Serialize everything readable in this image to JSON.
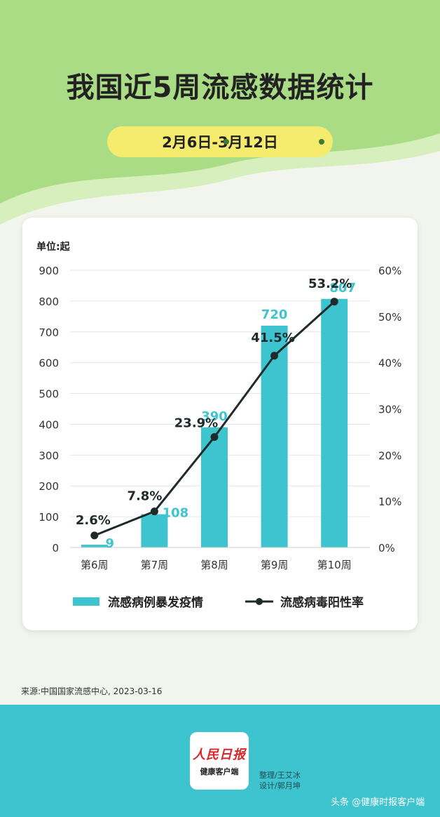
{
  "header": {
    "title": "我国近5周流感数据统计",
    "date_range": "2月6日-3月12日"
  },
  "colors": {
    "bar": "#3ec4cf",
    "line": "#1f2a2a",
    "green_bg": "#b6e08a",
    "pill": "#f5ec6e",
    "footer": "#3ec4cf"
  },
  "chart_data": {
    "type": "bar",
    "unit_label": "单位:起",
    "categories": [
      "第6周",
      "第7周",
      "第8周",
      "第9周",
      "第10周"
    ],
    "series": [
      {
        "name": "流感病例暴发疫情",
        "type": "bar",
        "axis": "left",
        "values": [
          9,
          108,
          390,
          720,
          807
        ],
        "labels": [
          "9",
          "108",
          "390",
          "720",
          "807"
        ]
      },
      {
        "name": "流感病毒阳性率",
        "type": "line",
        "axis": "right",
        "values": [
          2.6,
          7.8,
          23.9,
          41.5,
          53.2
        ],
        "labels": [
          "2.6%",
          "7.8%",
          "23.9%",
          "41.5%",
          "53.2%"
        ]
      }
    ],
    "y_left": {
      "range": [
        0,
        900
      ],
      "ticks": [
        "0",
        "100",
        "200",
        "300",
        "400",
        "500",
        "600",
        "700",
        "800",
        "900"
      ]
    },
    "y_right": {
      "range": [
        0,
        60
      ],
      "ticks": [
        "0%",
        "10%",
        "20%",
        "30%",
        "40%",
        "50%",
        "60%"
      ]
    },
    "grid": true,
    "legend_position": "bottom"
  },
  "footer": {
    "source": "来源:中国国家流感中心, 2023-03-16",
    "logo_text": "人民日报",
    "logo_sub": "健康客户端",
    "credit_edit": "整理/王艾冰",
    "credit_design": "设计/郭月坤",
    "watermark": "头条 @健康时报客户端"
  }
}
